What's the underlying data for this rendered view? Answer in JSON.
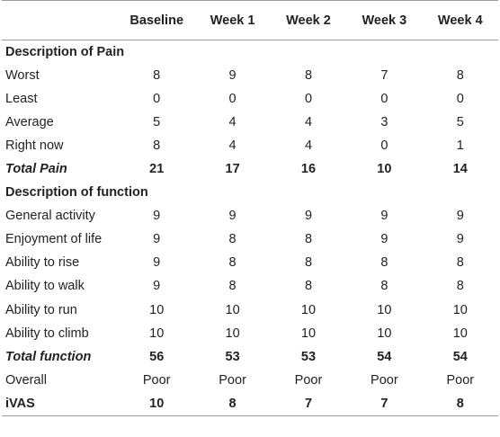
{
  "columns": [
    "",
    "Baseline",
    "Week 1",
    "Week 2",
    "Week 3",
    "Week 4"
  ],
  "rows": [
    {
      "type": "section",
      "label": "Description of Pain",
      "values": [
        "",
        "",
        "",
        "",
        ""
      ]
    },
    {
      "type": "data",
      "label": "Worst",
      "values": [
        "8",
        "9",
        "8",
        "7",
        "8"
      ]
    },
    {
      "type": "data",
      "label": "Least",
      "values": [
        "0",
        "0",
        "0",
        "0",
        "0"
      ]
    },
    {
      "type": "data",
      "label": "Average",
      "values": [
        "5",
        "4",
        "4",
        "3",
        "5"
      ]
    },
    {
      "type": "data",
      "label": "Right now",
      "values": [
        "8",
        "4",
        "4",
        "0",
        "1"
      ]
    },
    {
      "type": "total",
      "label": "Total Pain",
      "values": [
        "21",
        "17",
        "16",
        "10",
        "14"
      ]
    },
    {
      "type": "section",
      "label": "Description of function",
      "values": [
        "",
        "",
        "",
        "",
        ""
      ]
    },
    {
      "type": "data",
      "label": "General activity",
      "values": [
        "9",
        "9",
        "9",
        "9",
        "9"
      ]
    },
    {
      "type": "data",
      "label": "Enjoyment of life",
      "values": [
        "9",
        "8",
        "8",
        "9",
        "9"
      ]
    },
    {
      "type": "data",
      "label": "Ability to rise",
      "values": [
        "9",
        "8",
        "8",
        "8",
        "8"
      ]
    },
    {
      "type": "data",
      "label": "Ability to walk",
      "values": [
        "9",
        "8",
        "8",
        "8",
        "8"
      ]
    },
    {
      "type": "data",
      "label": "Ability to run",
      "values": [
        "10",
        "10",
        "10",
        "10",
        "10"
      ]
    },
    {
      "type": "data",
      "label": "Ability to climb",
      "values": [
        "10",
        "10",
        "10",
        "10",
        "10"
      ]
    },
    {
      "type": "total",
      "label": "Total function",
      "values": [
        "56",
        "53",
        "53",
        "54",
        "54"
      ]
    },
    {
      "type": "overall",
      "label": "Overall",
      "values": [
        "Poor",
        "Poor",
        "Poor",
        "Poor",
        "Poor"
      ]
    },
    {
      "type": "ivas",
      "label": "iVAS",
      "values": [
        "10",
        "8",
        "7",
        "7",
        "8"
      ]
    }
  ]
}
